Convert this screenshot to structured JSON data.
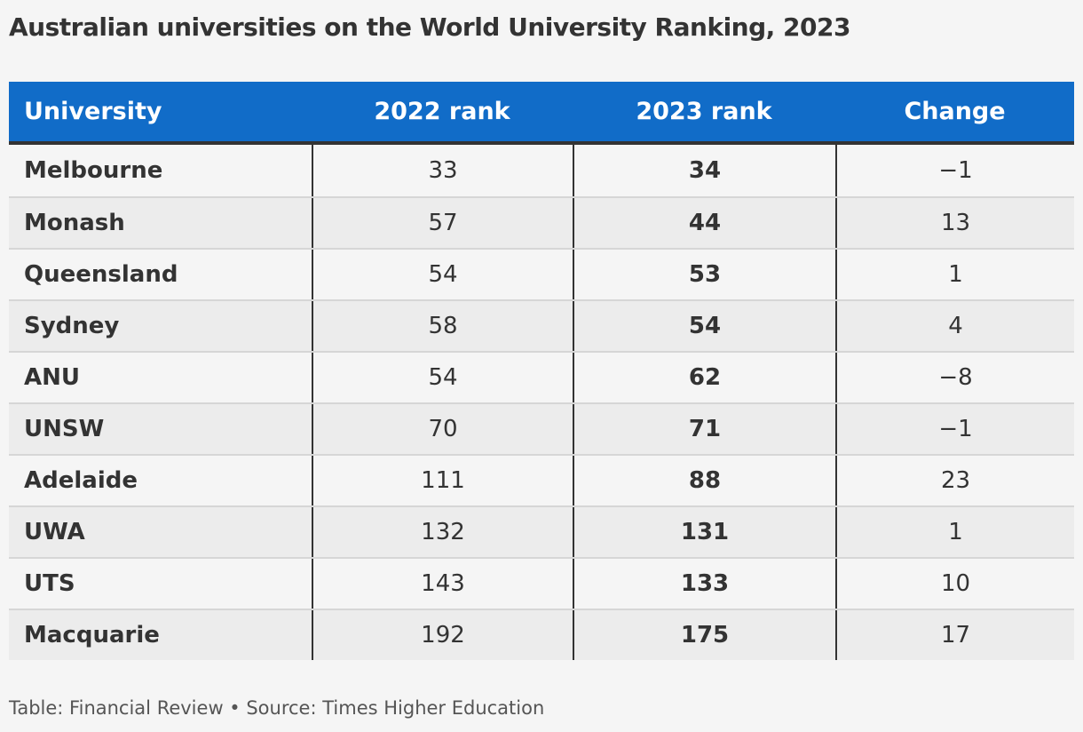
{
  "title": "Australian universities on the World University Ranking, 2023",
  "footer": "Table: Financial Review • Source: Times Higher Education",
  "colors": {
    "header_bg": "#116cc8",
    "header_text": "#ffffff",
    "row_alt": "#ececec",
    "background": "#f5f5f5"
  },
  "chart_data": {
    "type": "table",
    "title": "Australian universities on the World University Ranking, 2023",
    "columns": [
      "University",
      "2022 rank",
      "2023 rank",
      "Change"
    ],
    "rows": [
      [
        "Melbourne",
        "33",
        "34",
        "−1"
      ],
      [
        "Monash",
        "57",
        "44",
        "13"
      ],
      [
        "Queensland",
        "54",
        "53",
        "1"
      ],
      [
        "Sydney",
        "58",
        "54",
        "4"
      ],
      [
        "ANU",
        "54",
        "62",
        "−8"
      ],
      [
        "UNSW",
        "70",
        "71",
        "−1"
      ],
      [
        "Adelaide",
        "111",
        "88",
        "23"
      ],
      [
        "UWA",
        "132",
        "131",
        "1"
      ],
      [
        "UTS",
        "143",
        "133",
        "10"
      ],
      [
        "Macquarie",
        "192",
        "175",
        "17"
      ]
    ]
  }
}
